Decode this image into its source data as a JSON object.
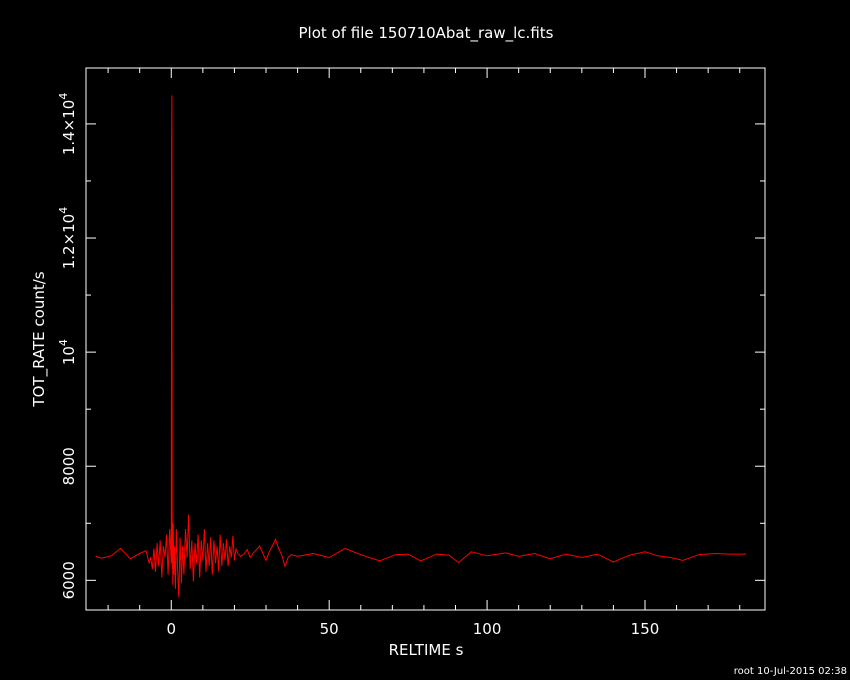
{
  "chart_data": {
    "type": "line",
    "title": "Plot of file 150710Abat_raw_lc.fits",
    "xlabel": "RELTIME  s",
    "ylabel": "TOT_RATE  count/s",
    "xlim": [
      -27,
      188
    ],
    "ylim": [
      5480,
      14980
    ],
    "grid": false,
    "x_ticks": [
      {
        "value": 0,
        "label": "0"
      },
      {
        "value": 50,
        "label": "50"
      },
      {
        "value": 100,
        "label": "100"
      },
      {
        "value": 150,
        "label": "150"
      }
    ],
    "y_ticks": [
      {
        "value": 6000,
        "label": "6000",
        "base": "",
        "exp": ""
      },
      {
        "value": 8000,
        "label": "8000",
        "base": "",
        "exp": ""
      },
      {
        "value": 10000,
        "label": "",
        "base": "10",
        "exp": "4"
      },
      {
        "value": 12000,
        "label": "",
        "base": "1.2×10",
        "exp": "4"
      },
      {
        "value": 14000,
        "label": "",
        "base": "1.4×10",
        "exp": "4"
      }
    ],
    "series": [
      {
        "name": "",
        "color": "#ff0000",
        "x": [
          -24,
          -22,
          -19,
          -16,
          -13,
          -10,
          -8,
          -7,
          -6.5,
          -6,
          -5.5,
          -5,
          -4.5,
          -4,
          -3.5,
          -3,
          -2.5,
          -2,
          -1.5,
          -1,
          -0.5,
          0,
          0.1,
          0.2,
          0.3,
          0.4,
          0.5,
          0.6,
          0.8,
          1,
          1.3,
          1.6,
          2,
          2.4,
          2.8,
          3.2,
          3.6,
          4,
          4.5,
          5,
          5.5,
          6,
          6.5,
          7,
          7.5,
          8,
          8.5,
          9,
          9.5,
          10,
          10.5,
          11,
          11.5,
          12,
          12.5,
          13,
          13.5,
          14,
          14.5,
          15,
          15.5,
          16,
          16.5,
          17,
          17.5,
          18,
          18.5,
          19,
          19.5,
          20,
          20.5,
          21,
          22,
          23,
          24,
          25,
          26,
          28,
          30,
          31,
          32,
          33,
          34,
          35,
          36,
          37,
          38,
          40,
          45,
          50,
          55,
          60,
          66,
          71,
          75,
          79,
          84,
          88,
          91,
          95,
          100,
          106,
          110,
          115,
          120,
          125,
          130,
          135,
          140,
          145,
          150,
          154,
          158,
          162,
          167,
          172,
          177,
          182
        ],
        "y": [
          6420,
          6390,
          6430,
          6560,
          6380,
          6470,
          6520,
          6300,
          6410,
          6200,
          6560,
          6150,
          6650,
          6250,
          6700,
          6050,
          6600,
          6400,
          6800,
          6100,
          6900,
          6300,
          13550,
          14500,
          6200,
          6800,
          5920,
          7000,
          6100,
          6600,
          5850,
          6900,
          6200,
          5700,
          6750,
          5950,
          6600,
          6100,
          6900,
          6400,
          7150,
          6200,
          6700,
          5980,
          6650,
          6300,
          6800,
          6050,
          6700,
          6350,
          6900,
          6150,
          6650,
          6250,
          6760,
          6100,
          6700,
          6300,
          6600,
          6160,
          6800,
          6250,
          6650,
          6350,
          6720,
          6250,
          6600,
          6400,
          6780,
          6350,
          6550,
          6480,
          6420,
          6460,
          6540,
          6400,
          6480,
          6600,
          6350,
          6500,
          6600,
          6720,
          6560,
          6440,
          6250,
          6400,
          6450,
          6420,
          6470,
          6400,
          6560,
          6450,
          6340,
          6450,
          6460,
          6340,
          6460,
          6440,
          6310,
          6500,
          6430,
          6480,
          6420,
          6470,
          6380,
          6460,
          6400,
          6460,
          6320,
          6440,
          6500,
          6430,
          6400,
          6350,
          6450,
          6470,
          6460,
          6460
        ]
      }
    ]
  },
  "footer": {
    "stamp": "root 10-Jul-2015 02:38"
  }
}
